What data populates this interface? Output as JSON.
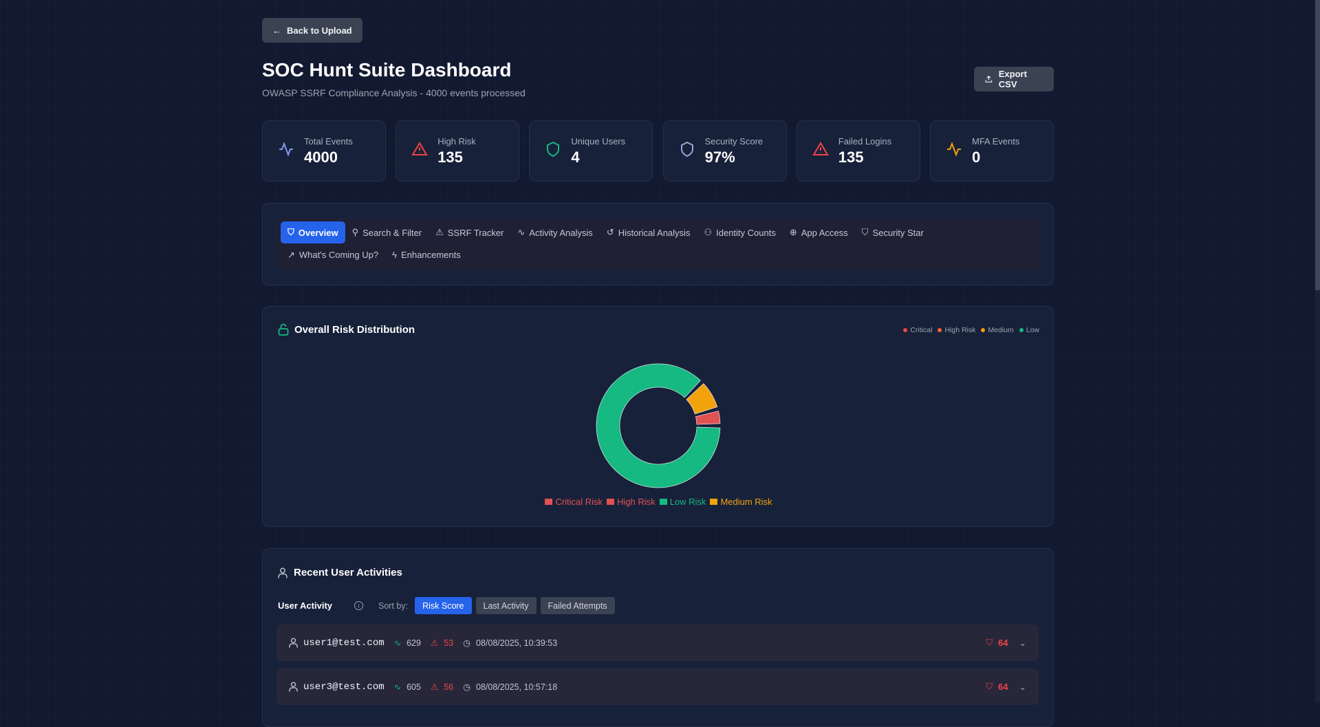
{
  "header": {
    "back_label": "Back to Upload",
    "title": "SOC Hunt Suite Dashboard",
    "subtitle": "OWASP SSRF Compliance Analysis - 4000 events processed",
    "export_label": "Export CSV"
  },
  "stats": [
    {
      "label": "Total Events",
      "value": "4000",
      "icon": "activity-icon",
      "color": "#7c9cf0"
    },
    {
      "label": "High Risk",
      "value": "135",
      "icon": "alert-triangle-icon",
      "color": "#ef4444"
    },
    {
      "label": "Unique Users",
      "value": "4",
      "icon": "shield-icon",
      "color": "#10b981"
    },
    {
      "label": "Security Score",
      "value": "97%",
      "icon": "shield-icon",
      "color": "#93a8d8"
    },
    {
      "label": "Failed Logins",
      "value": "135",
      "icon": "alert-triangle-icon",
      "color": "#ef4444"
    },
    {
      "label": "MFA Events",
      "value": "0",
      "icon": "activity-icon",
      "color": "#f59e0b"
    }
  ],
  "tabs": [
    "Overview",
    "Search & Filter",
    "SSRF Tracker",
    "Activity Analysis",
    "Historical Analysis",
    "Identity Counts",
    "App Access",
    "Security Star",
    "What's Coming Up?",
    "Enhancements"
  ],
  "risk": {
    "title": "Overall Risk Distribution",
    "top_legend": [
      {
        "label": "Critical",
        "color": "#ef4444"
      },
      {
        "label": "High Risk",
        "color": "#f0643c"
      },
      {
        "label": "Medium",
        "color": "#f59e0b"
      },
      {
        "label": "Low",
        "color": "#10b981"
      }
    ]
  },
  "chart_data": {
    "type": "pie",
    "title": "Overall Risk Distribution",
    "categories": [
      "Critical Risk",
      "High Risk",
      "Low Risk",
      "Medium Risk"
    ],
    "values": [
      0,
      135,
      3575,
      290
    ],
    "colors": [
      "#e05252",
      "#e05252",
      "#15b981",
      "#f2a20c"
    ],
    "legend": "bottom"
  },
  "activity": {
    "title": "Recent User Activities",
    "subtitle": "User Activity",
    "sort_label": "Sort by:",
    "sort_options": [
      "Risk Score",
      "Last Activity",
      "Failed Attempts"
    ],
    "rows": [
      {
        "user": "user1@test.com",
        "events": "629",
        "alerts": "53",
        "time": "08/08/2025, 10:39:53",
        "score": "64"
      },
      {
        "user": "user3@test.com",
        "events": "605",
        "alerts": "56",
        "time": "08/08/2025, 10:57:18",
        "score": "64"
      }
    ]
  }
}
